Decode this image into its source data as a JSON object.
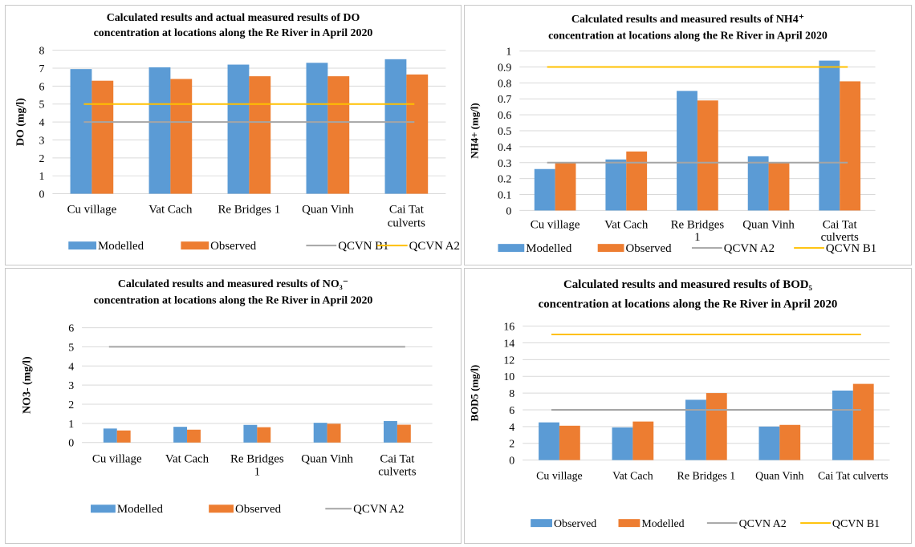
{
  "chart_data": [
    {
      "type": "bar",
      "title_lines": [
        "Calculated results and actual measured results of DO",
        "concentration at locations along the Re River in April 2020"
      ],
      "ylabel": "DO (mg/l)",
      "ylim": [
        0,
        8
      ],
      "yticks": [
        "0",
        "1",
        "2",
        "3",
        "4",
        "5",
        "6",
        "7",
        "8"
      ],
      "categories": [
        [
          "Cu village"
        ],
        [
          "Vat Cach"
        ],
        [
          "Re Bridges 1"
        ],
        [
          "Quan Vinh"
        ],
        [
          "Cai Tat",
          "culverts"
        ]
      ],
      "series": [
        {
          "name": "Modelled",
          "color": "#5b9bd5",
          "values": [
            6.95,
            7.05,
            7.2,
            7.3,
            7.5
          ]
        },
        {
          "name": "Observed",
          "color": "#ed7d31",
          "values": [
            6.3,
            6.4,
            6.55,
            6.55,
            6.65
          ]
        }
      ],
      "lines": [
        {
          "name": "QCVN B1",
          "color": "#a5a5a5",
          "value": 4
        },
        {
          "name": "QCVN A2",
          "color": "#ffc000",
          "value": 5
        }
      ]
    },
    {
      "type": "bar",
      "title_lines": [
        "Calculated results and measured results of NH4⁺",
        "concentration at locations along the Re River in April 2020"
      ],
      "ylabel": "NH4+ (mg/l)",
      "ylim": [
        0,
        1
      ],
      "yticks": [
        "0",
        "0.1",
        "0.2",
        "0.3",
        "0.4",
        "0.5",
        "0.6",
        "0.7",
        "0.8",
        "0.9",
        "1"
      ],
      "categories": [
        [
          "Cu village"
        ],
        [
          "Vat Cach"
        ],
        [
          "Re Bridges",
          "1"
        ],
        [
          "Quan Vinh"
        ],
        [
          "Cai Tat",
          "culverts"
        ]
      ],
      "series": [
        {
          "name": "Modelled",
          "color": "#5b9bd5",
          "values": [
            0.26,
            0.32,
            0.75,
            0.34,
            0.94
          ]
        },
        {
          "name": "Observed",
          "color": "#ed7d31",
          "values": [
            0.3,
            0.37,
            0.69,
            0.3,
            0.81
          ]
        }
      ],
      "lines": [
        {
          "name": "QCVN A2",
          "color": "#a5a5a5",
          "value": 0.3
        },
        {
          "name": "QCVN B1",
          "color": "#ffc000",
          "value": 0.9
        }
      ]
    },
    {
      "type": "bar",
      "title_lines": [
        "Calculated results and measured results of NO₃⁻",
        "concentration at locations along the Re River in April 2020"
      ],
      "ylabel": "NO3- (mg/l)",
      "ylim": [
        0,
        6
      ],
      "yticks": [
        "0",
        "1",
        "2",
        "3",
        "4",
        "5",
        "6"
      ],
      "categories": [
        [
          "Cu village"
        ],
        [
          "Vat Cach"
        ],
        [
          "Re Bridges",
          "1"
        ],
        [
          "Quan Vinh"
        ],
        [
          "Cai Tat",
          "culverts"
        ]
      ],
      "series": [
        {
          "name": "Modelled",
          "color": "#5b9bd5",
          "values": [
            0.73,
            0.82,
            0.92,
            1.03,
            1.12
          ]
        },
        {
          "name": "Observed",
          "color": "#ed7d31",
          "values": [
            0.63,
            0.67,
            0.8,
            0.98,
            0.93
          ]
        }
      ],
      "lines": [
        {
          "name": "QCVN A2",
          "color": "#a5a5a5",
          "value": 5
        }
      ]
    },
    {
      "type": "bar",
      "title_lines": [
        "Calculated results and measured results of BOD₅",
        "concentration at locations along the Re River in April 2020"
      ],
      "ylabel": "BOD5 (mg/l)",
      "ylim": [
        0,
        16
      ],
      "yticks": [
        "0",
        "2",
        "4",
        "6",
        "8",
        "10",
        "12",
        "14",
        "16"
      ],
      "categories": [
        [
          "Cu village"
        ],
        [
          "Vat Cach"
        ],
        [
          "Re Bridges 1"
        ],
        [
          "Quan Vinh"
        ],
        [
          "Cai Tat culverts"
        ]
      ],
      "series": [
        {
          "name": "Observed",
          "color": "#5b9bd5",
          "values": [
            4.5,
            3.9,
            7.2,
            4.0,
            8.3
          ]
        },
        {
          "name": "Modelled",
          "color": "#ed7d31",
          "values": [
            4.1,
            4.6,
            8.0,
            4.2,
            9.1
          ]
        }
      ],
      "lines": [
        {
          "name": "QCVN A2",
          "color": "#a5a5a5",
          "value": 6
        },
        {
          "name": "QCVN B1",
          "color": "#ffc000",
          "value": 15
        }
      ]
    }
  ]
}
